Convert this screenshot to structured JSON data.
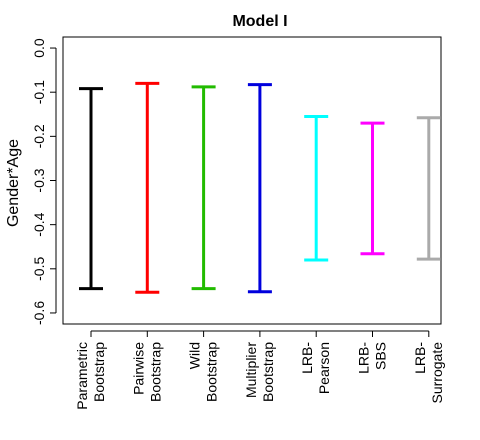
{
  "chart_data": {
    "type": "errorbar",
    "title": "Model I",
    "ylabel": "Gender*Age",
    "xlabel": "",
    "ylim": [
      -0.625,
      0.025
    ],
    "yticks": [
      0.0,
      -0.1,
      -0.2,
      -0.3,
      -0.4,
      -0.5,
      -0.6
    ],
    "ytick_labels": [
      "0.0",
      "-0.1",
      "-0.2",
      "-0.3",
      "-0.4",
      "-0.5",
      "-0.6"
    ],
    "grid": false,
    "legend": "none",
    "categories": [
      {
        "line1": "Parametric",
        "line2": "Bootstrap"
      },
      {
        "line1": "Pairwise",
        "line2": "Bootstrap"
      },
      {
        "line1": "Wild",
        "line2": "Bootstrap"
      },
      {
        "line1": "Multiplier",
        "line2": "Bootstrap"
      },
      {
        "line1": "LRB-",
        "line2": "Pearson"
      },
      {
        "line1": "LRB-",
        "line2": "SBS"
      },
      {
        "line1": "LRB-",
        "line2": "Surrogate"
      }
    ],
    "intervals": [
      {
        "upper": -0.092,
        "lower": -0.545,
        "color": "#000000"
      },
      {
        "upper": -0.08,
        "lower": -0.553,
        "color": "#ff0000"
      },
      {
        "upper": -0.088,
        "lower": -0.545,
        "color": "#22bb00"
      },
      {
        "upper": -0.083,
        "lower": -0.552,
        "color": "#0000dd"
      },
      {
        "upper": -0.155,
        "lower": -0.48,
        "color": "#00ffff"
      },
      {
        "upper": -0.17,
        "lower": -0.466,
        "color": "#ff00ff"
      },
      {
        "upper": -0.158,
        "lower": -0.478,
        "color": "#aaaaaa"
      }
    ]
  }
}
